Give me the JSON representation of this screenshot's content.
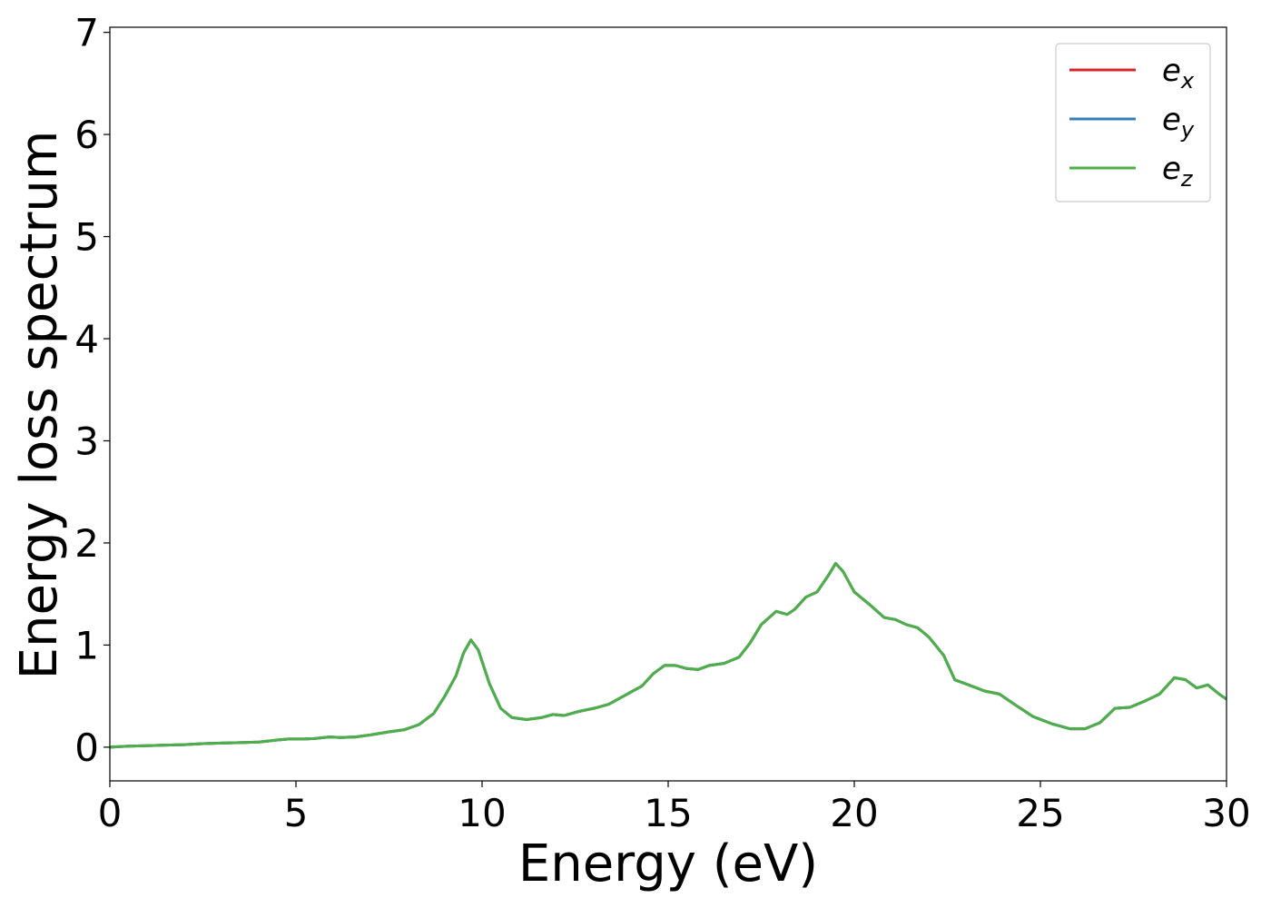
{
  "chart_data": {
    "type": "line",
    "title": "",
    "xlabel": "Energy (eV)",
    "ylabel": "Energy loss spectrum",
    "xlim": [
      0,
      30
    ],
    "ylim": [
      -0.33,
      7.05
    ],
    "xticks": [
      0,
      5,
      10,
      15,
      20,
      25,
      30
    ],
    "yticks": [
      0,
      1,
      2,
      3,
      4,
      5,
      6,
      7
    ],
    "grid": false,
    "legend_position": "top-right",
    "x": [
      0,
      0.5,
      1,
      1.5,
      2,
      2.5,
      3,
      3.5,
      4,
      4.5,
      4.8,
      5.2,
      5.5,
      5.9,
      6.2,
      6.6,
      7,
      7.5,
      7.9,
      8.3,
      8.7,
      9.0,
      9.3,
      9.5,
      9.7,
      9.9,
      10.2,
      10.5,
      10.8,
      11.2,
      11.6,
      11.9,
      12.2,
      12.6,
      13.0,
      13.4,
      13.9,
      14.3,
      14.6,
      14.9,
      15.2,
      15.5,
      15.8,
      16.1,
      16.5,
      16.9,
      17.2,
      17.5,
      17.9,
      18.2,
      18.4,
      18.7,
      19.0,
      19.3,
      19.5,
      19.7,
      20.0,
      20.4,
      20.8,
      21.1,
      21.4,
      21.7,
      22.0,
      22.4,
      22.7,
      23.0,
      23.5,
      23.9,
      24.3,
      24.8,
      25.3,
      25.8,
      26.2,
      26.6,
      27.0,
      27.4,
      27.8,
      28.2,
      28.6,
      28.9,
      29.2,
      29.5,
      29.8,
      30.0
    ],
    "series": [
      {
        "name": "e_x",
        "label_base": "e",
        "label_sub": "x",
        "color": "#d62728",
        "values": [
          0.0,
          0.01,
          0.015,
          0.02,
          0.025,
          0.035,
          0.04,
          0.045,
          0.05,
          0.07,
          0.08,
          0.08,
          0.085,
          0.1,
          0.095,
          0.1,
          0.12,
          0.15,
          0.17,
          0.22,
          0.33,
          0.5,
          0.7,
          0.92,
          1.05,
          0.95,
          0.62,
          0.38,
          0.29,
          0.27,
          0.29,
          0.32,
          0.31,
          0.35,
          0.38,
          0.42,
          0.52,
          0.6,
          0.72,
          0.8,
          0.8,
          0.77,
          0.76,
          0.8,
          0.82,
          0.88,
          1.02,
          1.2,
          1.33,
          1.3,
          1.35,
          1.47,
          1.52,
          1.68,
          1.8,
          1.72,
          1.52,
          1.4,
          1.27,
          1.25,
          1.2,
          1.17,
          1.08,
          0.9,
          0.66,
          0.62,
          0.55,
          0.52,
          0.42,
          0.3,
          0.23,
          0.18,
          0.18,
          0.24,
          0.38,
          0.39,
          0.45,
          0.52,
          0.68,
          0.66,
          0.58,
          0.61,
          0.52,
          0.47
        ]
      },
      {
        "name": "e_y",
        "label_base": "e",
        "label_sub": "y",
        "color": "#377eb8",
        "values": [
          0.0,
          0.01,
          0.015,
          0.02,
          0.025,
          0.035,
          0.04,
          0.045,
          0.05,
          0.07,
          0.08,
          0.08,
          0.085,
          0.1,
          0.095,
          0.1,
          0.12,
          0.15,
          0.17,
          0.22,
          0.33,
          0.5,
          0.7,
          0.92,
          1.05,
          0.95,
          0.62,
          0.38,
          0.29,
          0.27,
          0.29,
          0.32,
          0.31,
          0.35,
          0.38,
          0.42,
          0.52,
          0.6,
          0.72,
          0.8,
          0.8,
          0.77,
          0.76,
          0.8,
          0.82,
          0.88,
          1.02,
          1.2,
          1.33,
          1.3,
          1.35,
          1.47,
          1.52,
          1.68,
          1.8,
          1.72,
          1.52,
          1.4,
          1.27,
          1.25,
          1.2,
          1.17,
          1.08,
          0.9,
          0.66,
          0.62,
          0.55,
          0.52,
          0.42,
          0.3,
          0.23,
          0.18,
          0.18,
          0.24,
          0.38,
          0.39,
          0.45,
          0.52,
          0.68,
          0.66,
          0.58,
          0.61,
          0.52,
          0.47
        ]
      },
      {
        "name": "e_z",
        "label_base": "e",
        "label_sub": "z",
        "color": "#4daf4a",
        "values": [
          0.0,
          0.01,
          0.015,
          0.02,
          0.025,
          0.035,
          0.04,
          0.045,
          0.05,
          0.07,
          0.08,
          0.08,
          0.085,
          0.1,
          0.095,
          0.1,
          0.12,
          0.15,
          0.17,
          0.22,
          0.33,
          0.5,
          0.7,
          0.92,
          1.05,
          0.95,
          0.62,
          0.38,
          0.29,
          0.27,
          0.29,
          0.32,
          0.31,
          0.35,
          0.38,
          0.42,
          0.52,
          0.6,
          0.72,
          0.8,
          0.8,
          0.77,
          0.76,
          0.8,
          0.82,
          0.88,
          1.02,
          1.2,
          1.33,
          1.3,
          1.35,
          1.47,
          1.52,
          1.68,
          1.8,
          1.72,
          1.52,
          1.4,
          1.27,
          1.25,
          1.2,
          1.17,
          1.08,
          0.9,
          0.66,
          0.62,
          0.55,
          0.52,
          0.42,
          0.3,
          0.23,
          0.18,
          0.18,
          0.24,
          0.38,
          0.39,
          0.45,
          0.52,
          0.68,
          0.66,
          0.58,
          0.61,
          0.52,
          0.47
        ]
      }
    ]
  }
}
